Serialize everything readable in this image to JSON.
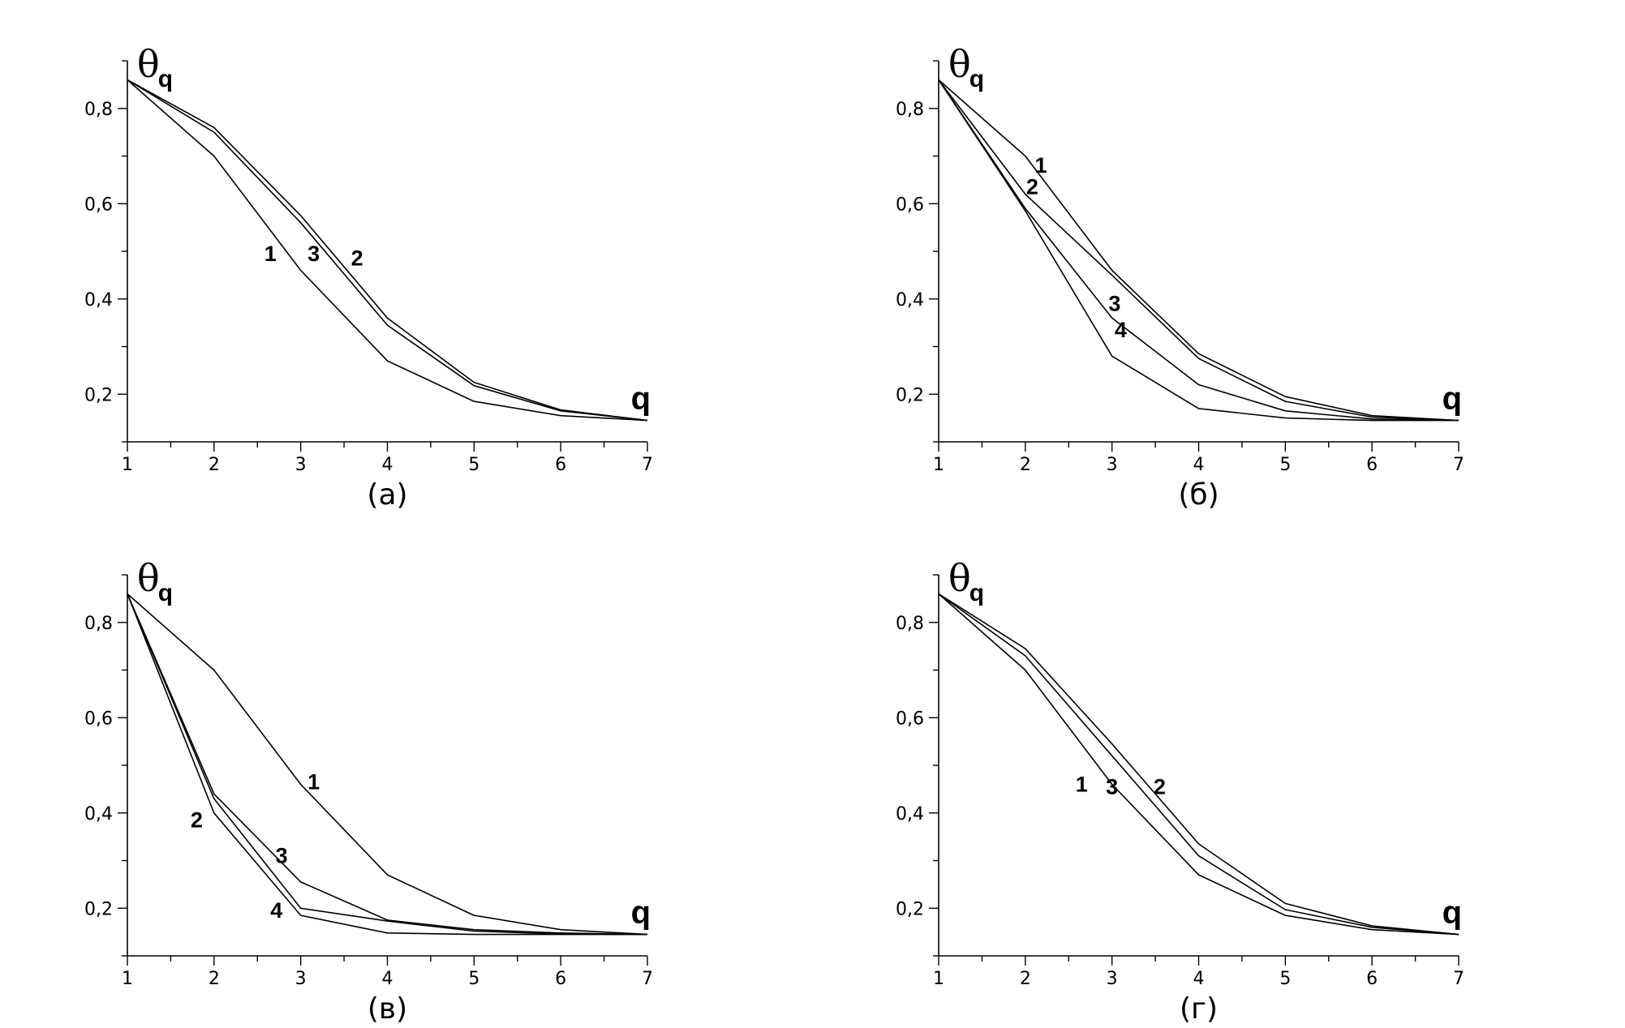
{
  "chart_data": [
    {
      "type": "line",
      "caption": "(а)",
      "ylabel_symbol": "θ",
      "ylabel_sub": "q",
      "xlabel": "q",
      "xlim": [
        1,
        7
      ],
      "ylim": [
        0.1,
        0.9
      ],
      "x_ticks": [
        "1",
        "2",
        "3",
        "4",
        "5",
        "6",
        "7"
      ],
      "y_ticks": [
        {
          "value": 0.2,
          "label": "0,2"
        },
        {
          "value": 0.4,
          "label": "0,4"
        },
        {
          "value": 0.6,
          "label": "0,6"
        },
        {
          "value": 0.8,
          "label": "0,8"
        }
      ],
      "x": [
        1,
        2,
        3,
        4,
        5,
        6,
        7
      ],
      "series": [
        {
          "name": "1",
          "values": [
            0.86,
            0.7,
            0.46,
            0.27,
            0.185,
            0.155,
            0.145
          ],
          "label_at": [
            2.65,
            0.48
          ]
        },
        {
          "name": "2",
          "values": [
            0.86,
            0.76,
            0.575,
            0.36,
            0.225,
            0.167,
            0.145
          ],
          "label_at": [
            3.65,
            0.47
          ]
        },
        {
          "name": "3",
          "values": [
            0.86,
            0.75,
            0.56,
            0.345,
            0.218,
            0.165,
            0.145
          ],
          "label_at": [
            3.15,
            0.48
          ]
        }
      ]
    },
    {
      "type": "line",
      "caption": "(б)",
      "ylabel_symbol": "θ",
      "ylabel_sub": "q",
      "xlabel": "q",
      "xlim": [
        1,
        7
      ],
      "ylim": [
        0.1,
        0.9
      ],
      "x_ticks": [
        "1",
        "2",
        "3",
        "4",
        "5",
        "6",
        "7"
      ],
      "y_ticks": [
        {
          "value": 0.2,
          "label": "0,2"
        },
        {
          "value": 0.4,
          "label": "0,4"
        },
        {
          "value": 0.6,
          "label": "0,6"
        },
        {
          "value": 0.8,
          "label": "0,8"
        }
      ],
      "x": [
        1,
        2,
        3,
        4,
        5,
        6,
        7
      ],
      "series": [
        {
          "name": "1",
          "values": [
            0.86,
            0.7,
            0.46,
            0.285,
            0.195,
            0.155,
            0.145
          ],
          "label_at": [
            2.18,
            0.665
          ]
        },
        {
          "name": "2",
          "values": [
            0.86,
            0.62,
            0.45,
            0.275,
            0.185,
            0.152,
            0.145
          ],
          "label_at": [
            2.08,
            0.62
          ]
        },
        {
          "name": "3",
          "values": [
            0.86,
            0.59,
            0.36,
            0.22,
            0.165,
            0.148,
            0.145
          ],
          "label_at": [
            3.03,
            0.375
          ]
        },
        {
          "name": "4",
          "values": [
            0.86,
            0.585,
            0.28,
            0.17,
            0.15,
            0.145,
            0.145
          ],
          "label_at": [
            3.1,
            0.32
          ]
        }
      ]
    },
    {
      "type": "line",
      "caption": "(в)",
      "ylabel_symbol": "θ",
      "ylabel_sub": "q",
      "xlabel": "q",
      "xlim": [
        1,
        7
      ],
      "ylim": [
        0.1,
        0.9
      ],
      "x_ticks": [
        "1",
        "2",
        "3",
        "4",
        "5",
        "6",
        "7"
      ],
      "y_ticks": [
        {
          "value": 0.2,
          "label": "0,2"
        },
        {
          "value": 0.4,
          "label": "0,4"
        },
        {
          "value": 0.6,
          "label": "0,6"
        },
        {
          "value": 0.8,
          "label": "0,8"
        }
      ],
      "x": [
        1,
        2,
        3,
        4,
        5,
        6,
        7
      ],
      "series": [
        {
          "name": "1",
          "values": [
            0.86,
            0.7,
            0.46,
            0.27,
            0.185,
            0.155,
            0.145
          ],
          "label_at": [
            3.15,
            0.45
          ]
        },
        {
          "name": "2",
          "values": [
            0.86,
            0.4,
            0.185,
            0.148,
            0.145,
            0.145,
            0.145
          ],
          "label_at": [
            1.8,
            0.37
          ]
        },
        {
          "name": "3",
          "values": [
            0.86,
            0.44,
            0.255,
            0.175,
            0.155,
            0.148,
            0.145
          ],
          "label_at": [
            2.78,
            0.295
          ]
        },
        {
          "name": "4",
          "values": [
            0.86,
            0.43,
            0.2,
            0.173,
            0.152,
            0.146,
            0.145
          ],
          "label_at": [
            2.72,
            0.18
          ]
        }
      ]
    },
    {
      "type": "line",
      "caption": "(г)",
      "ylabel_symbol": "θ",
      "ylabel_sub": "q",
      "xlabel": "q",
      "xlim": [
        1,
        7
      ],
      "ylim": [
        0.1,
        0.9
      ],
      "x_ticks": [
        "1",
        "2",
        "3",
        "4",
        "5",
        "6",
        "7"
      ],
      "y_ticks": [
        {
          "value": 0.2,
          "label": "0,2"
        },
        {
          "value": 0.4,
          "label": "0,4"
        },
        {
          "value": 0.6,
          "label": "0,6"
        },
        {
          "value": 0.8,
          "label": "0,8"
        }
      ],
      "x": [
        1,
        2,
        3,
        4,
        5,
        6,
        7
      ],
      "series": [
        {
          "name": "1",
          "values": [
            0.86,
            0.7,
            0.46,
            0.27,
            0.185,
            0.155,
            0.145
          ],
          "label_at": [
            2.65,
            0.445
          ]
        },
        {
          "name": "2",
          "values": [
            0.86,
            0.745,
            0.545,
            0.335,
            0.21,
            0.163,
            0.145
          ],
          "label_at": [
            3.55,
            0.44
          ]
        },
        {
          "name": "3",
          "values": [
            0.86,
            0.73,
            0.52,
            0.31,
            0.197,
            0.16,
            0.145
          ],
          "label_at": [
            3.0,
            0.44
          ]
        }
      ]
    }
  ]
}
